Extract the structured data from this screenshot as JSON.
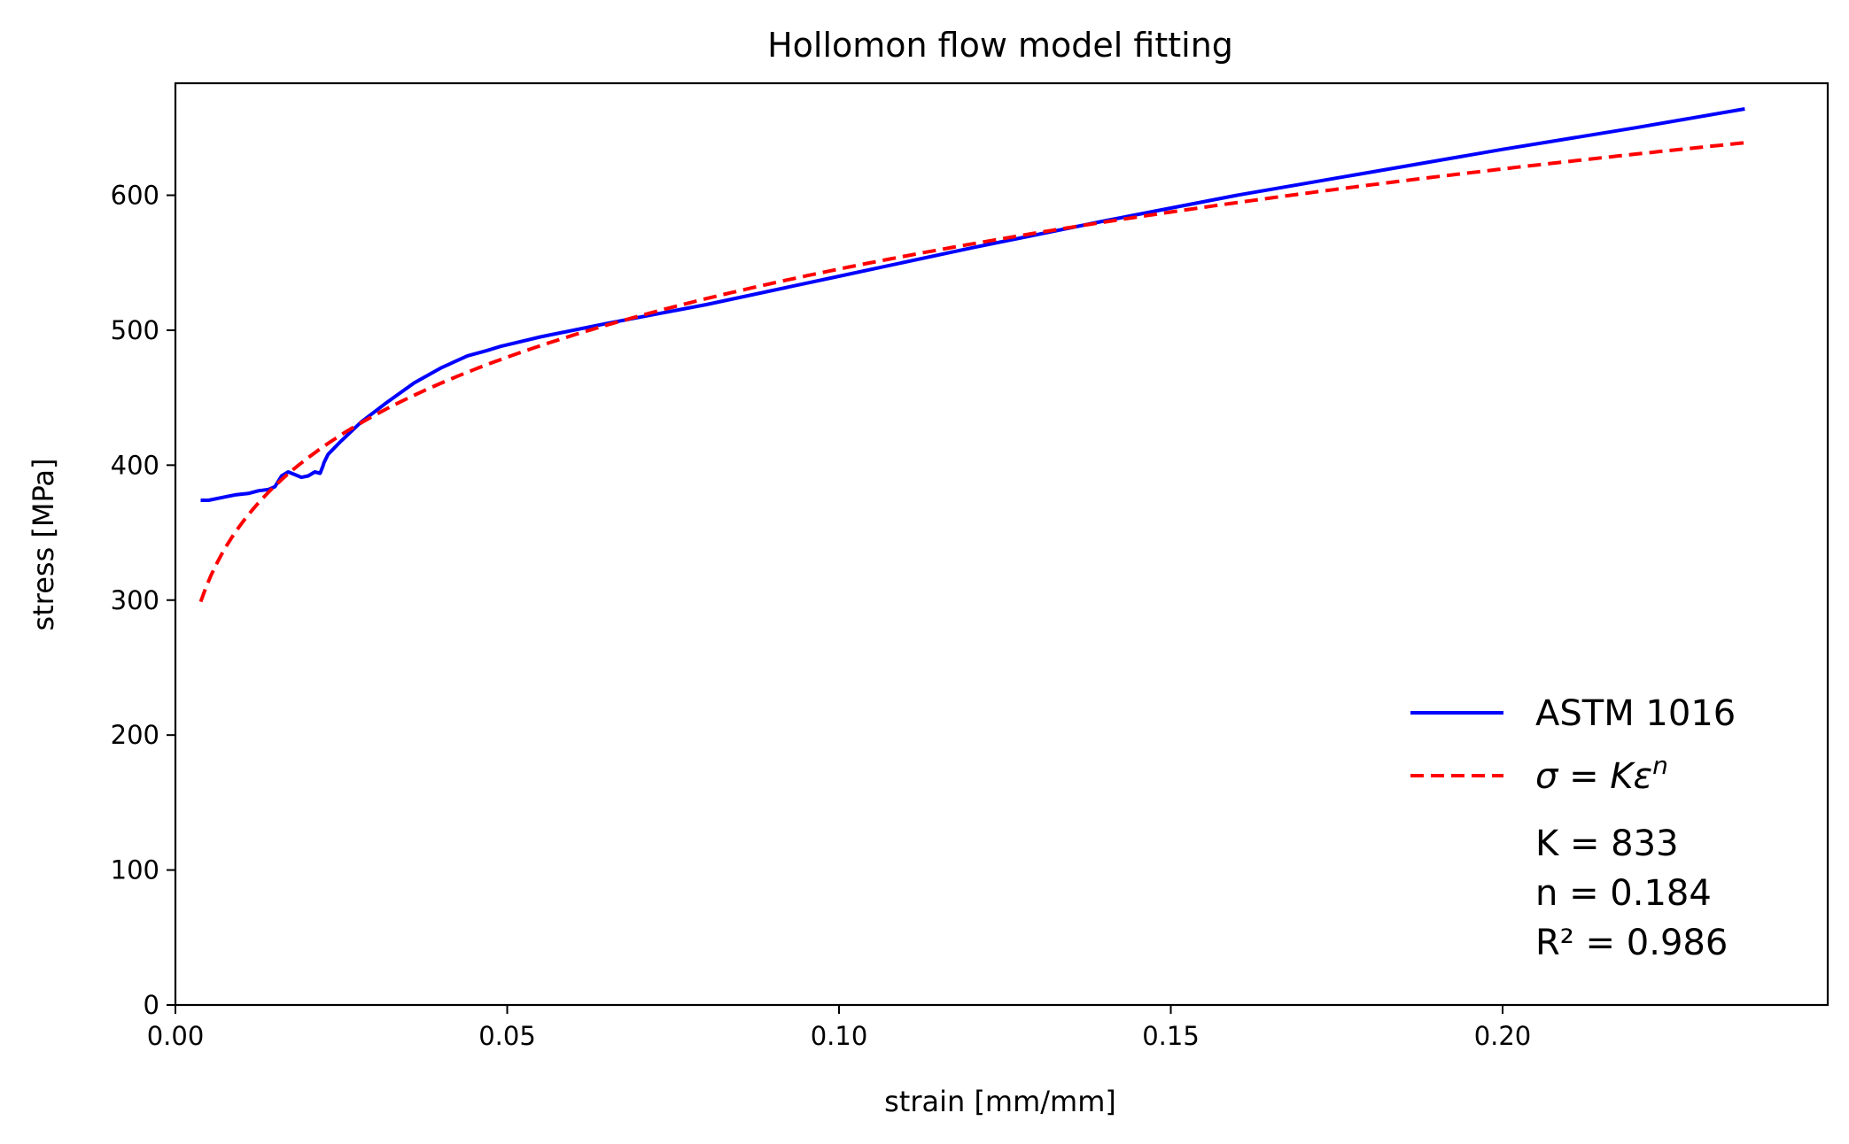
{
  "chart_data": {
    "type": "line",
    "title": "Hollomon flow model fitting",
    "xlabel": "strain [mm/mm]",
    "ylabel": "stress [MPa]",
    "xlim": [
      0.0,
      0.249
    ],
    "ylim": [
      0,
      683
    ],
    "x_ticks": [
      0.0,
      0.05,
      0.1,
      0.15,
      0.2
    ],
    "x_tick_labels": [
      "0.00",
      "0.05",
      "0.10",
      "0.15",
      "0.20"
    ],
    "y_ticks": [
      0,
      100,
      200,
      300,
      400,
      500,
      600
    ],
    "y_tick_labels": [
      "0",
      "100",
      "200",
      "300",
      "400",
      "500",
      "600"
    ],
    "grid": false,
    "legend_position": "lower-right",
    "series": [
      {
        "name": "ASTM 1016",
        "color": "#0000ff",
        "style": "solid",
        "x": [
          0.0038,
          0.005,
          0.007,
          0.009,
          0.011,
          0.0125,
          0.014,
          0.015,
          0.016,
          0.017,
          0.018,
          0.019,
          0.02,
          0.021,
          0.0218,
          0.0222,
          0.0224,
          0.023,
          0.025,
          0.028,
          0.032,
          0.036,
          0.04,
          0.044,
          0.047,
          0.049,
          0.055,
          0.065,
          0.08,
          0.1,
          0.12,
          0.14,
          0.16,
          0.18,
          0.2,
          0.22,
          0.2365
        ],
        "y": [
          374,
          374,
          376,
          378,
          379,
          381,
          382,
          384,
          392,
          395,
          393,
          391,
          392,
          395,
          394,
          399,
          402,
          408,
          418,
          432,
          447,
          461,
          472,
          481,
          485,
          488,
          495,
          505,
          519,
          540,
          561,
          581,
          600,
          617,
          634,
          650,
          664
        ]
      },
      {
        "name": "σ = Kε^n",
        "color": "#ff0000",
        "style": "dashed",
        "K": 833,
        "n": 0.184,
        "x_range": [
          0.0038,
          0.2365
        ]
      }
    ],
    "annotations": {
      "k": "K = 833",
      "n": "n = 0.184",
      "r2": "R² = 0.986"
    }
  }
}
